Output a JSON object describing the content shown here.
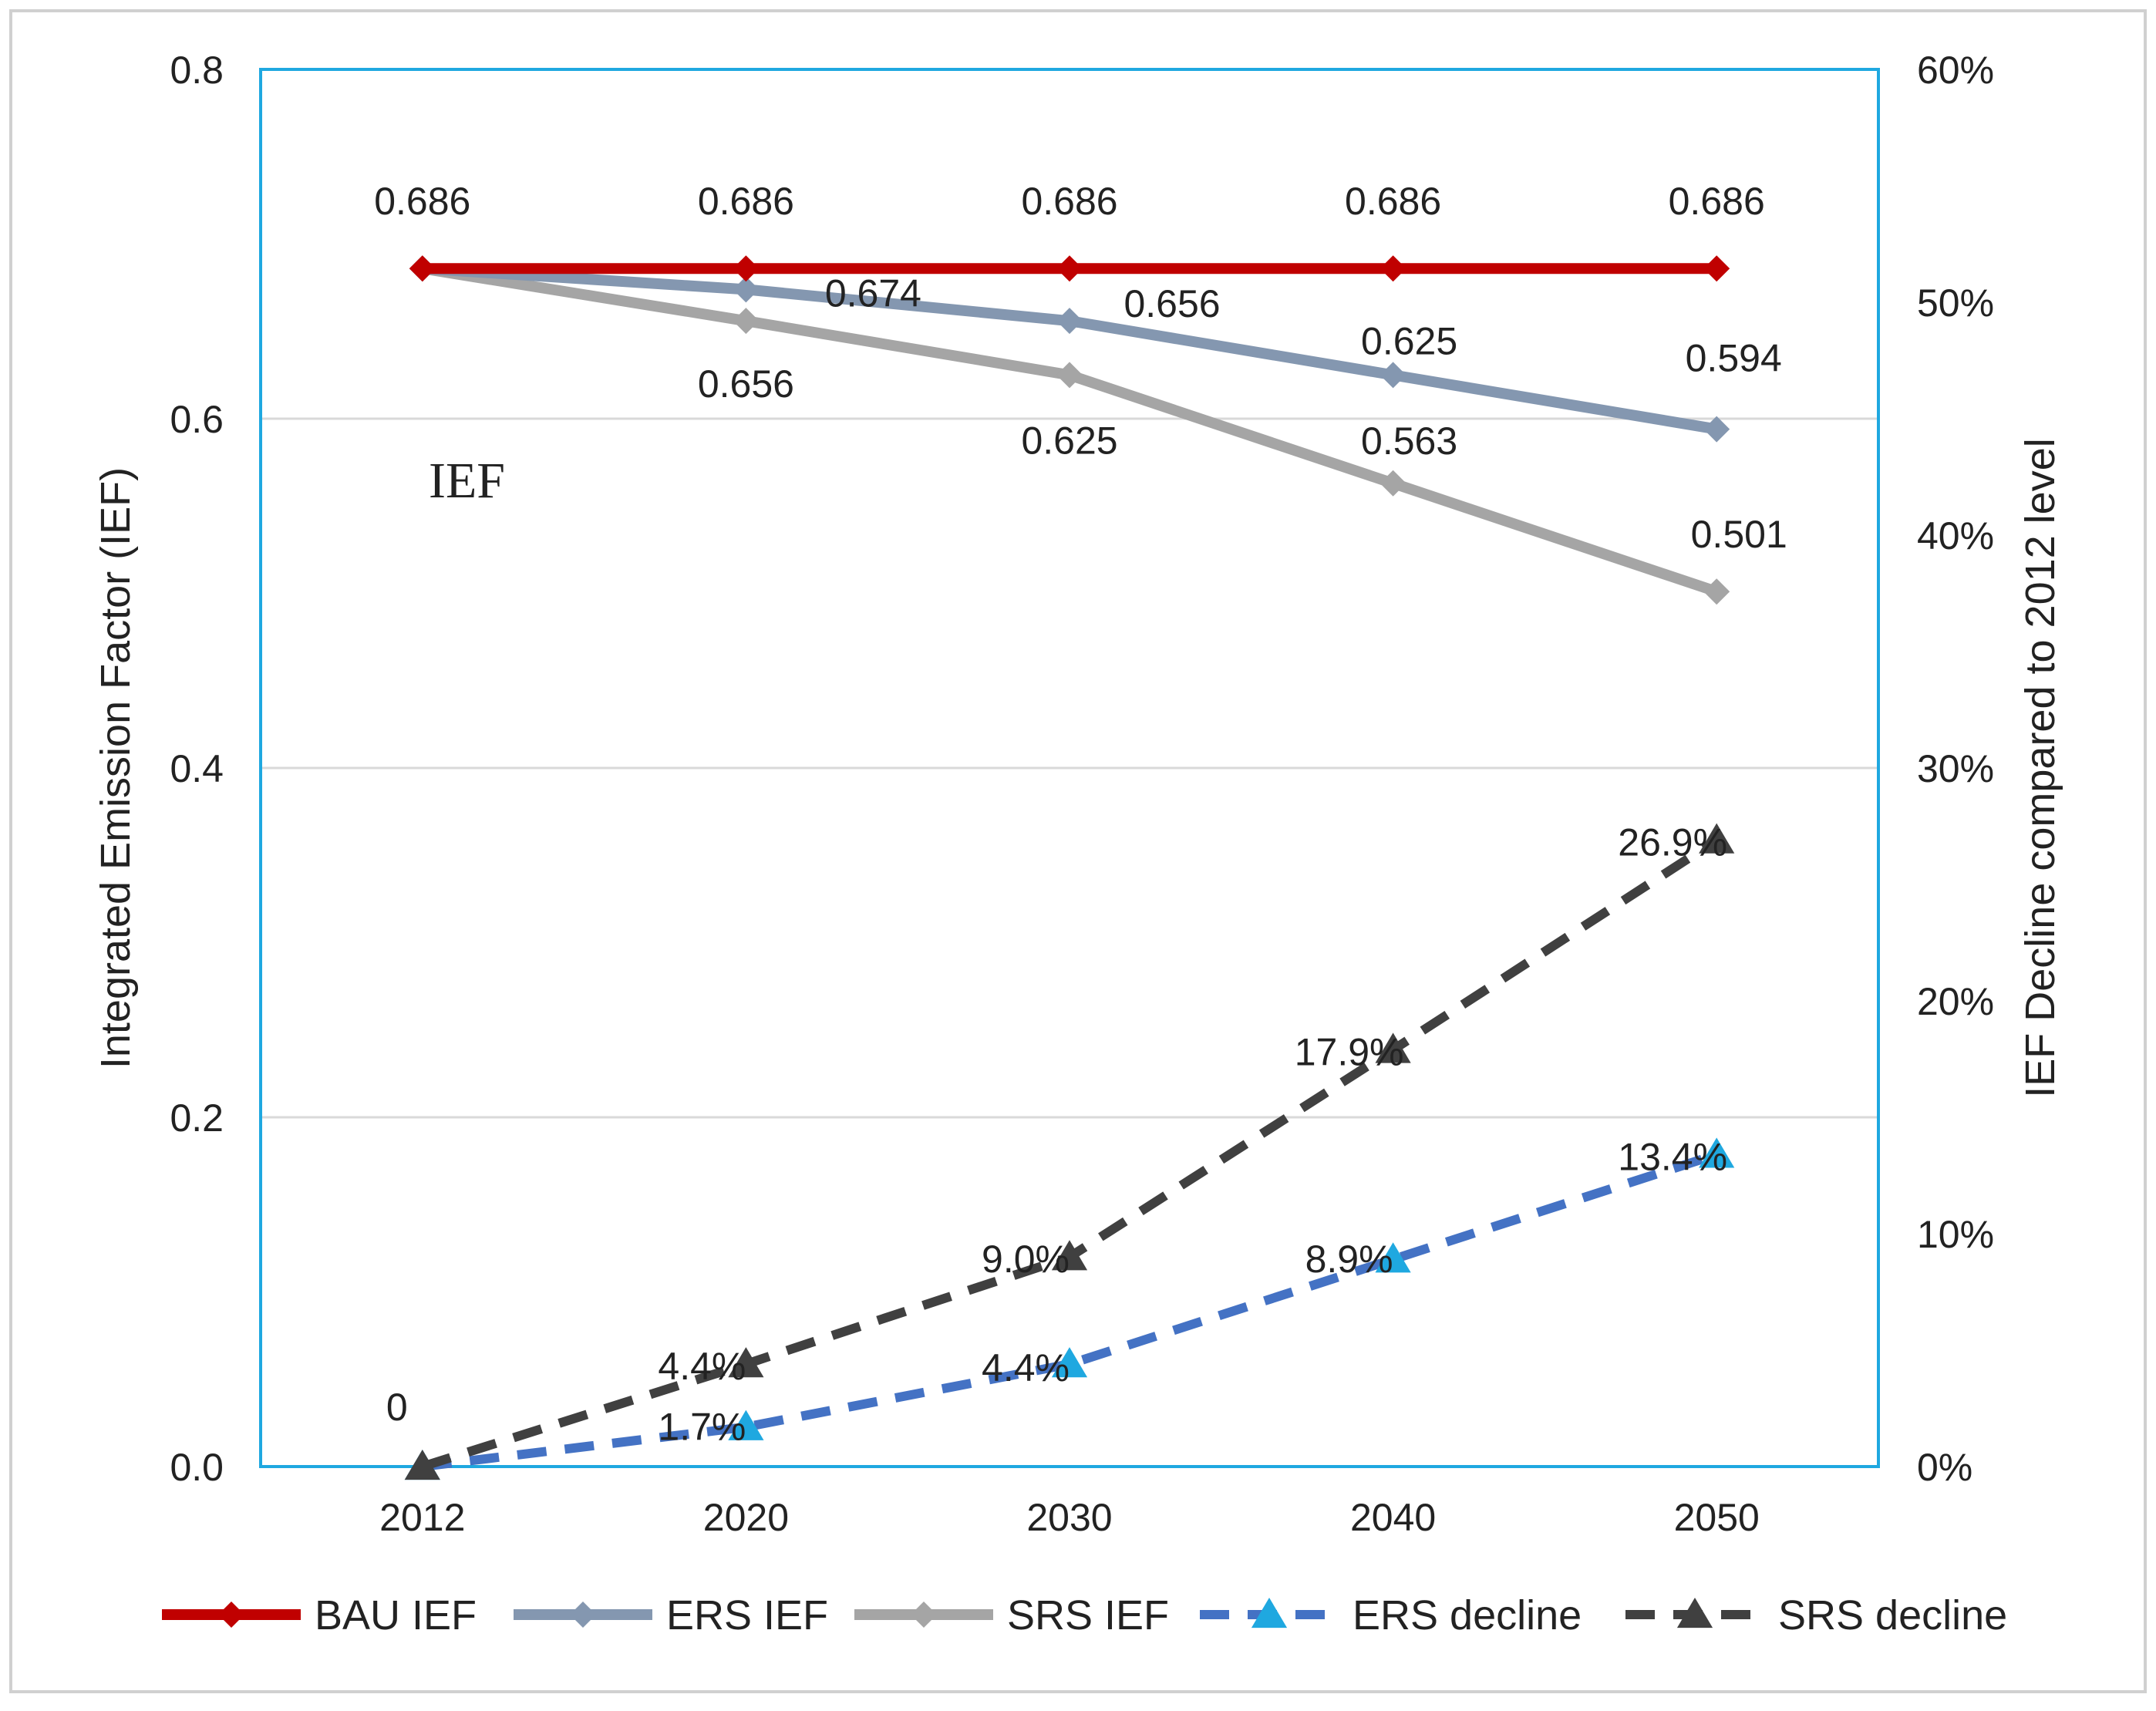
{
  "chart_data": {
    "type": "line",
    "categories": [
      "2012",
      "2020",
      "2030",
      "2040",
      "2050"
    ],
    "annotation": "IEF",
    "ylabel_left": "Integrated Emission Factor (IEF)",
    "ylabel_right": "IEF Decline compared to 2012 level",
    "ylim_left": [
      0,
      0.8
    ],
    "ylim_right": [
      0,
      60
    ],
    "yticks_left": [
      "0.0",
      "0.2",
      "0.4",
      "0.6",
      "0.8"
    ],
    "yticks_right": [
      "0%",
      "10%",
      "20%",
      "30%",
      "40%",
      "50%",
      "60%"
    ],
    "grid": true,
    "legend_position": "bottom",
    "series": [
      {
        "name": "BAU IEF",
        "axis": "left",
        "style": "solid",
        "marker": "diamond",
        "color": "#c00000",
        "values": [
          0.686,
          0.686,
          0.686,
          0.686,
          0.686
        ],
        "labels": [
          "0.686",
          "0.686",
          "0.686",
          "0.686",
          "0.686"
        ]
      },
      {
        "name": "ERS IEF",
        "axis": "left",
        "style": "solid",
        "marker": "diamond",
        "color": "#8497b0",
        "values": [
          0.686,
          0.674,
          0.656,
          0.625,
          0.594
        ],
        "labels": [
          "",
          "0.674",
          "0.656",
          "0.625",
          "0.594"
        ]
      },
      {
        "name": "SRS IEF",
        "axis": "left",
        "style": "solid",
        "marker": "diamond",
        "color": "#a5a5a5",
        "values": [
          0.686,
          0.656,
          0.625,
          0.563,
          0.501
        ],
        "labels": [
          "",
          "0.656",
          "0.625",
          "0.563",
          "0.501"
        ]
      },
      {
        "name": "ERS decline",
        "axis": "right",
        "style": "dashed",
        "marker": "triangle",
        "color": "#4472c4",
        "marker_color": "#1fa8e0",
        "values": [
          0,
          1.7,
          4.4,
          8.9,
          13.4
        ],
        "labels": [
          "",
          "1.7%",
          "4.4%",
          "8.9%",
          "13.4%"
        ]
      },
      {
        "name": "SRS decline",
        "axis": "right",
        "style": "dashed",
        "marker": "triangle",
        "color": "#404040",
        "marker_color": "#404040",
        "values": [
          0,
          4.4,
          9.0,
          17.9,
          26.9
        ],
        "labels": [
          "0",
          "4.4%",
          "9.0%",
          "17.9%",
          "26.9%"
        ]
      }
    ]
  }
}
